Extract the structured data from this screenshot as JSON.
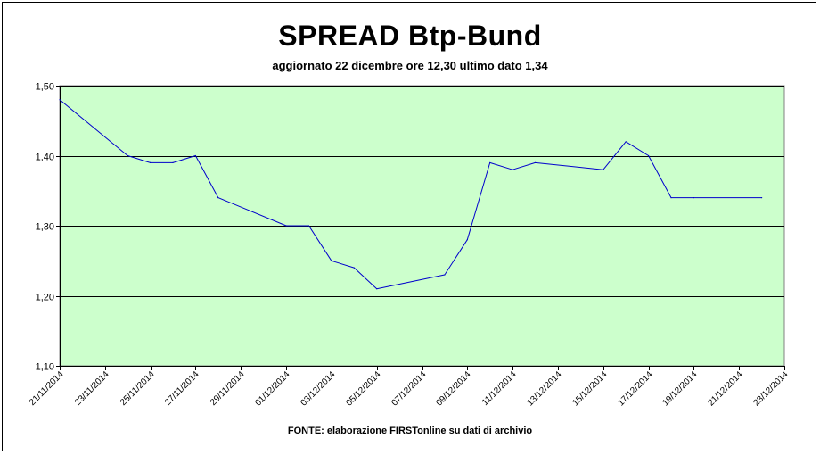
{
  "chart_data": {
    "type": "line",
    "title": "SPREAD Btp-Bund",
    "subtitle": "aggiornato 22 dicembre ore 12,30  ultimo dato  1,34",
    "footer": "FONTE: elaborazione FIRSTonline su dati di archivio",
    "ylim": [
      1.1,
      1.5
    ],
    "y_ticks": [
      1.1,
      1.2,
      1.3,
      1.4,
      1.5
    ],
    "y_tick_labels": [
      "1,10",
      "1,20",
      "1,30",
      "1,40",
      "1,50"
    ],
    "x_range": [
      "2014-11-21",
      "2014-12-23"
    ],
    "x_tick_labels": [
      "21/11/2014",
      "23/11/2014",
      "25/11/2014",
      "27/11/2014",
      "29/11/2014",
      "01/12/2014",
      "03/12/2014",
      "05/12/2014",
      "07/12/2014",
      "09/12/2014",
      "11/12/2014",
      "13/12/2014",
      "15/12/2014",
      "17/12/2014",
      "19/12/2014",
      "21/12/2014",
      "23/12/2014"
    ],
    "grid": true,
    "colors": {
      "plot_bg": "#ccffcc",
      "line": "#0000cc",
      "grid": "#000000"
    },
    "series": [
      {
        "points": [
          {
            "x": "2014-11-21",
            "y": 1.48
          },
          {
            "x": "2014-11-24",
            "y": 1.4
          },
          {
            "x": "2014-11-25",
            "y": 1.39
          },
          {
            "x": "2014-11-26",
            "y": 1.39
          },
          {
            "x": "2014-11-27",
            "y": 1.4
          },
          {
            "x": "2014-11-28",
            "y": 1.34
          },
          {
            "x": "2014-12-01",
            "y": 1.3
          },
          {
            "x": "2014-12-02",
            "y": 1.3
          },
          {
            "x": "2014-12-03",
            "y": 1.25
          },
          {
            "x": "2014-12-04",
            "y": 1.24
          },
          {
            "x": "2014-12-05",
            "y": 1.21
          },
          {
            "x": "2014-12-08",
            "y": 1.23
          },
          {
            "x": "2014-12-09",
            "y": 1.28
          },
          {
            "x": "2014-12-10",
            "y": 1.39
          },
          {
            "x": "2014-12-11",
            "y": 1.38
          },
          {
            "x": "2014-12-12",
            "y": 1.39
          },
          {
            "x": "2014-12-15",
            "y": 1.38
          },
          {
            "x": "2014-12-16",
            "y": 1.42
          },
          {
            "x": "2014-12-17",
            "y": 1.4
          },
          {
            "x": "2014-12-18",
            "y": 1.34
          },
          {
            "x": "2014-12-19",
            "y": 1.34
          },
          {
            "x": "2014-12-22",
            "y": 1.34
          }
        ]
      }
    ]
  }
}
